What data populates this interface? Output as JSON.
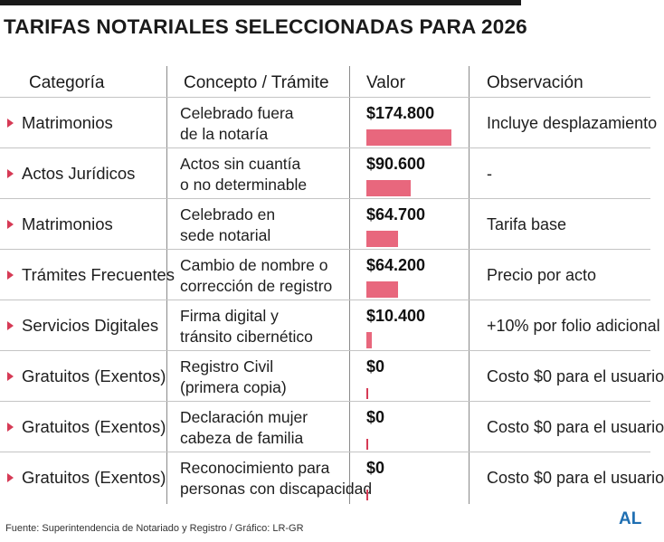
{
  "title": "TARIFAS NOTARIALES SELECCIONADAS PARA 2026",
  "headers": {
    "categoria": "Categoría",
    "concepto": "Concepto / Trámite",
    "valor": "Valor",
    "observacion": "Observación"
  },
  "colors": {
    "bar": "#e8677d",
    "marker": "#d63a55",
    "logo": "#1f6fb2"
  },
  "chart_data": {
    "type": "bar",
    "title": "TARIFAS NOTARIALES SELECCIONADAS PARA 2026",
    "orientation": "horizontal",
    "xlim": [
      0,
      174800
    ],
    "rows": [
      {
        "categoria": "Matrimonios",
        "concepto": [
          "Celebrado fuera",
          "de la notaría"
        ],
        "label": "$174.800",
        "value": 174800,
        "observacion": "Incluye desplazamiento"
      },
      {
        "categoria": "Actos Jurídicos",
        "concepto": [
          "Actos sin cuantía",
          "o no determinable"
        ],
        "label": "$90.600",
        "value": 90600,
        "observacion": "-"
      },
      {
        "categoria": "Matrimonios",
        "concepto": [
          "Celebrado en",
          "sede notarial"
        ],
        "label": "$64.700",
        "value": 64700,
        "observacion": "Tarifa base"
      },
      {
        "categoria": "Trámites Frecuentes",
        "concepto": [
          "Cambio de nombre o",
          "corrección de registro"
        ],
        "label": "$64.200",
        "value": 64200,
        "observacion": "Precio por acto"
      },
      {
        "categoria": "Servicios Digitales",
        "concepto": [
          "Firma digital y",
          "tránsito cibernético"
        ],
        "label": "$10.400",
        "value": 10400,
        "observacion": "+10% por folio adicional"
      },
      {
        "categoria": "Gratuitos (Exentos)",
        "concepto": [
          "Registro Civil",
          "(primera copia)"
        ],
        "label": "$0",
        "value": 0,
        "observacion": "Costo $0 para el usuario"
      },
      {
        "categoria": "Gratuitos (Exentos)",
        "concepto": [
          "Declaración mujer",
          "cabeza de familia"
        ],
        "label": "$0",
        "value": 0,
        "observacion": "Costo $0 para el usuario"
      },
      {
        "categoria": "Gratuitos (Exentos)",
        "concepto": [
          "Reconocimiento para",
          "personas con discapacidad"
        ],
        "label": "$0",
        "value": 0,
        "observacion": "Costo $0 para el usuario"
      }
    ]
  },
  "footer": "Fuente: Superintendencia de Notariado y Registro / Gráfico: LR-GR",
  "logo": "AL"
}
